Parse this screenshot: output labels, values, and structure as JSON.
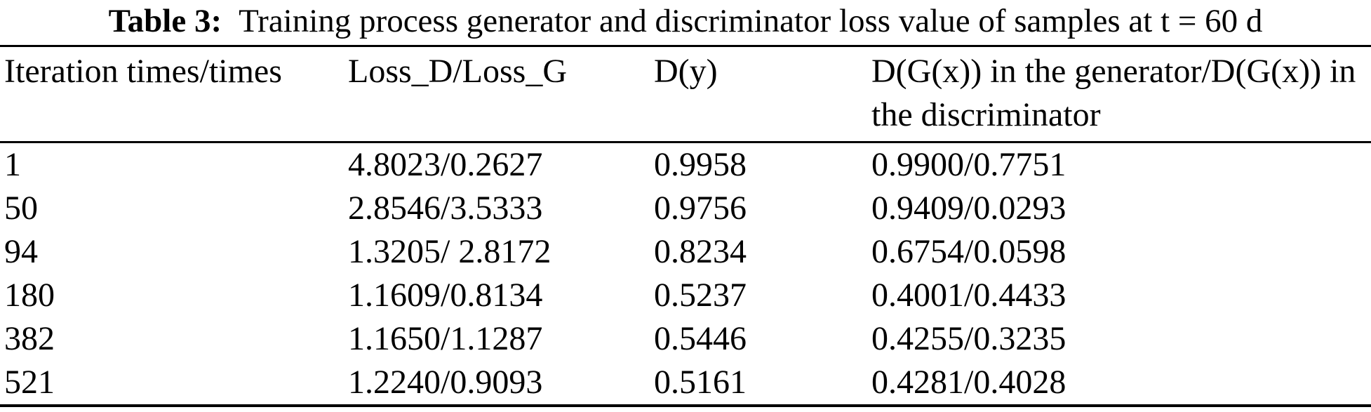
{
  "colors": {
    "background": "#ffffff",
    "text": "#000000",
    "rule": "#000000"
  },
  "caption": {
    "label": "Table 3:",
    "title": "Training process generator and discriminator loss value of samples at t = 60 d"
  },
  "table": {
    "headers": [
      "Iteration times/times",
      "Loss_D/Loss_G",
      "D(y)",
      "D(G(x)) in the generator/D(G(x)) in the discriminator"
    ],
    "rows": [
      [
        "1",
        "4.8023/0.2627",
        "0.9958",
        "0.9900/0.7751"
      ],
      [
        "50",
        "2.8546/3.5333",
        "0.9756",
        "0.9409/0.0293"
      ],
      [
        "94",
        "1.3205/ 2.8172",
        "0.8234",
        "0.6754/0.0598"
      ],
      [
        "180",
        "1.1609/0.8134",
        "0.5237",
        "0.4001/0.4433"
      ],
      [
        "382",
        "1.1650/1.1287",
        "0.5446",
        "0.4255/0.3235"
      ],
      [
        "521",
        "1.2240/0.9093",
        "0.5161",
        "0.4281/0.4028"
      ]
    ]
  }
}
